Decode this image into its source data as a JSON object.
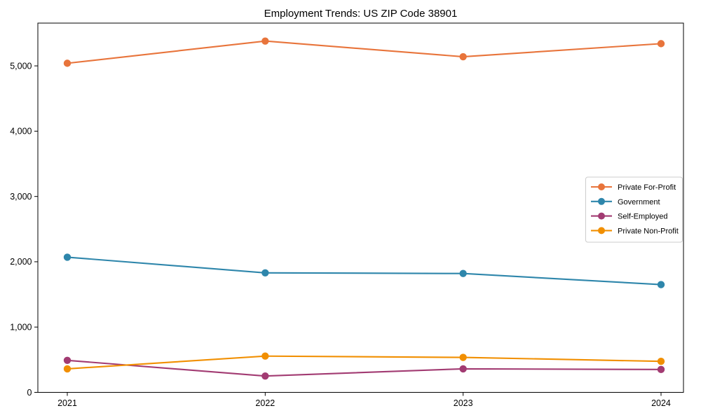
{
  "chart_data": {
    "type": "line",
    "title": "Employment Trends: US ZIP Code 38901",
    "categories": [
      "2021",
      "2022",
      "2023",
      "2024"
    ],
    "x": [
      2021,
      2022,
      2023,
      2024
    ],
    "series": [
      {
        "name": "Private For-Profit",
        "color": "#E8743B",
        "values": [
          5040,
          5380,
          5140,
          5340
        ]
      },
      {
        "name": "Government",
        "color": "#2E86AB",
        "values": [
          2070,
          1830,
          1820,
          1650
        ]
      },
      {
        "name": "Self-Employed",
        "color": "#A23B72",
        "values": [
          490,
          250,
          360,
          350
        ]
      },
      {
        "name": "Private Non-Profit",
        "color": "#F18F01",
        "values": [
          360,
          555,
          535,
          475
        ]
      }
    ],
    "xlabel": "",
    "ylabel": "",
    "ylim": [
      0,
      5655
    ],
    "yticks": [
      0,
      1000,
      2000,
      3000,
      4000,
      5000
    ],
    "ytick_labels": [
      "0",
      "1,000",
      "2,000",
      "3,000",
      "4,000",
      "5,000"
    ],
    "grid": false,
    "legend_position": "center-right",
    "marker": "circle",
    "colors": {
      "text": "#000000",
      "spine": "#000000",
      "legend_border": "#cccccc",
      "legend_background": "#ffffff"
    }
  }
}
